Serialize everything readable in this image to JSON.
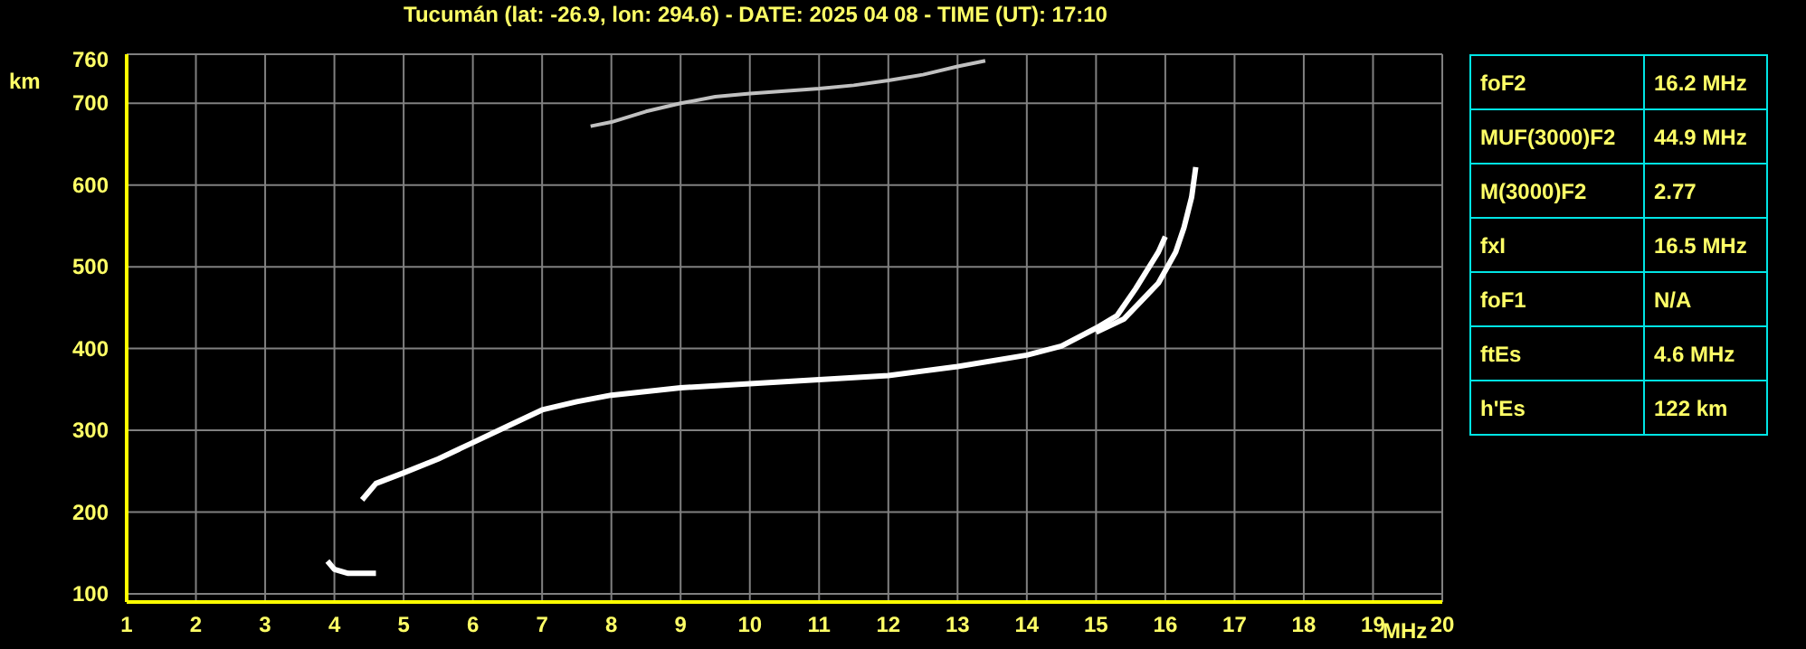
{
  "chart_data": {
    "type": "line",
    "title": "Tucumán (lat: -26.9, lon: 294.6) - DATE: 2025 04 08 - TIME (UT): 17:10",
    "xlabel": "MHz",
    "ylabel": "km",
    "xlim": [
      1,
      20
    ],
    "ylim": [
      90,
      760
    ],
    "xticks": [
      1,
      2,
      3,
      4,
      5,
      6,
      7,
      8,
      9,
      10,
      11,
      12,
      13,
      14,
      15,
      16,
      17,
      18,
      19,
      20
    ],
    "yticks": [
      100,
      200,
      300,
      400,
      500,
      600,
      700,
      760
    ],
    "grid": true,
    "marker": "none",
    "line_style": "solid",
    "series": [
      {
        "color": "#ffffff",
        "x": [
          4.4,
          4.6,
          5,
          5.5,
          6,
          6.5,
          7,
          7.5,
          8,
          9,
          10,
          11,
          12,
          13,
          14,
          14.5,
          15,
          15.3,
          15.57,
          15.9,
          16.0
        ],
        "values": [
          215,
          235,
          248,
          265,
          285,
          305,
          325,
          335,
          343,
          352,
          357,
          362,
          367,
          378,
          392,
          403,
          425,
          440,
          473,
          518,
          537
        ]
      },
      {
        "color": "#ffffff",
        "x": [
          15.0,
          15.4,
          15.9,
          16.15,
          16.27,
          16.38,
          16.44
        ],
        "values": [
          420,
          436,
          480,
          518,
          548,
          585,
          622
        ]
      },
      {
        "color": "#ffffff",
        "x": [
          3.9,
          4.0,
          4.2,
          4.6
        ],
        "values": [
          140,
          130,
          125,
          125
        ]
      },
      {
        "color": "#c0c0c0",
        "x": [
          7.7,
          8,
          8.5,
          9,
          9.5,
          10,
          10.5,
          11,
          11.5,
          12,
          12.5,
          13,
          13.4
        ],
        "values": [
          672,
          677,
          690,
          700,
          708,
          712,
          715,
          718,
          722,
          728,
          735,
          745,
          752
        ]
      }
    ],
    "annotations": [
      "foF2",
      "16.2 MHz",
      "MUF(3000)F2",
      "44.9 MHz",
      "M(3000)F2",
      "2.77",
      "fxI",
      "16.5 MHz",
      "foF1",
      "N/A",
      "ftEs",
      "4.6 MHz",
      "h'Es",
      "122 km"
    ]
  }
}
